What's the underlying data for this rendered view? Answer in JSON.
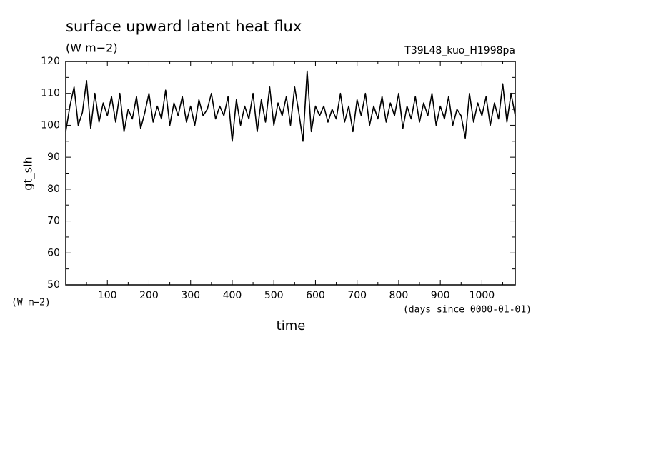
{
  "chart_data": {
    "type": "line",
    "title": "surface upward latent heat flux",
    "subtitle": "(W m−2)",
    "annotation": "T39L48_kuo_H1998pa",
    "ylabel": "gt_slh",
    "yunits": "(W m−2)",
    "xunits": "(days since 0000-01-01)",
    "xlabel": "time",
    "xlim": [
      0,
      1080
    ],
    "ylim": [
      50,
      120
    ],
    "xticks": [
      100,
      200,
      300,
      400,
      500,
      600,
      700,
      800,
      900,
      1000
    ],
    "yticks": [
      50,
      60,
      70,
      80,
      90,
      100,
      110,
      120
    ],
    "xminorticks": [
      50,
      150,
      250,
      350,
      450,
      550,
      650,
      750,
      850,
      950,
      1050
    ],
    "yminorticks": [
      55,
      65,
      75,
      85,
      95,
      105,
      115
    ],
    "series": [
      {
        "name": "gt_slh",
        "color": "#000000",
        "x": [
          0,
          10,
          20,
          30,
          40,
          50,
          60,
          70,
          80,
          90,
          100,
          110,
          120,
          130,
          140,
          150,
          160,
          170,
          180,
          190,
          200,
          210,
          220,
          230,
          240,
          250,
          260,
          270,
          280,
          290,
          300,
          310,
          320,
          330,
          340,
          350,
          360,
          370,
          380,
          390,
          400,
          410,
          420,
          430,
          440,
          450,
          460,
          470,
          480,
          490,
          500,
          510,
          520,
          530,
          540,
          550,
          560,
          570,
          580,
          590,
          600,
          610,
          620,
          630,
          640,
          650,
          660,
          670,
          680,
          690,
          700,
          710,
          720,
          730,
          740,
          750,
          760,
          770,
          780,
          790,
          800,
          810,
          820,
          830,
          840,
          850,
          860,
          870,
          880,
          890,
          900,
          910,
          920,
          930,
          940,
          950,
          960,
          970,
          980,
          990,
          1000,
          1010,
          1020,
          1030,
          1040,
          1050,
          1060,
          1070,
          1080
        ],
        "values": [
          98,
          106,
          112,
          100,
          104,
          114,
          99,
          110,
          101,
          107,
          103,
          109,
          101,
          110,
          98,
          105,
          102,
          109,
          99,
          104,
          110,
          101,
          106,
          102,
          111,
          100,
          107,
          103,
          109,
          101,
          106,
          100,
          108,
          103,
          105,
          110,
          102,
          106,
          103,
          109,
          95,
          108,
          100,
          106,
          102,
          110,
          98,
          108,
          101,
          112,
          100,
          107,
          103,
          109,
          100,
          112,
          104,
          95,
          117,
          98,
          106,
          103,
          106,
          101,
          105,
          102,
          110,
          101,
          106,
          98,
          108,
          103,
          110,
          100,
          106,
          102,
          109,
          101,
          107,
          103,
          110,
          99,
          106,
          102,
          109,
          101,
          107,
          103,
          110,
          100,
          106,
          102,
          109,
          100,
          105,
          103,
          96,
          110,
          101,
          107,
          103,
          109,
          100,
          107,
          102,
          113,
          101,
          110,
          103
        ]
      }
    ]
  }
}
